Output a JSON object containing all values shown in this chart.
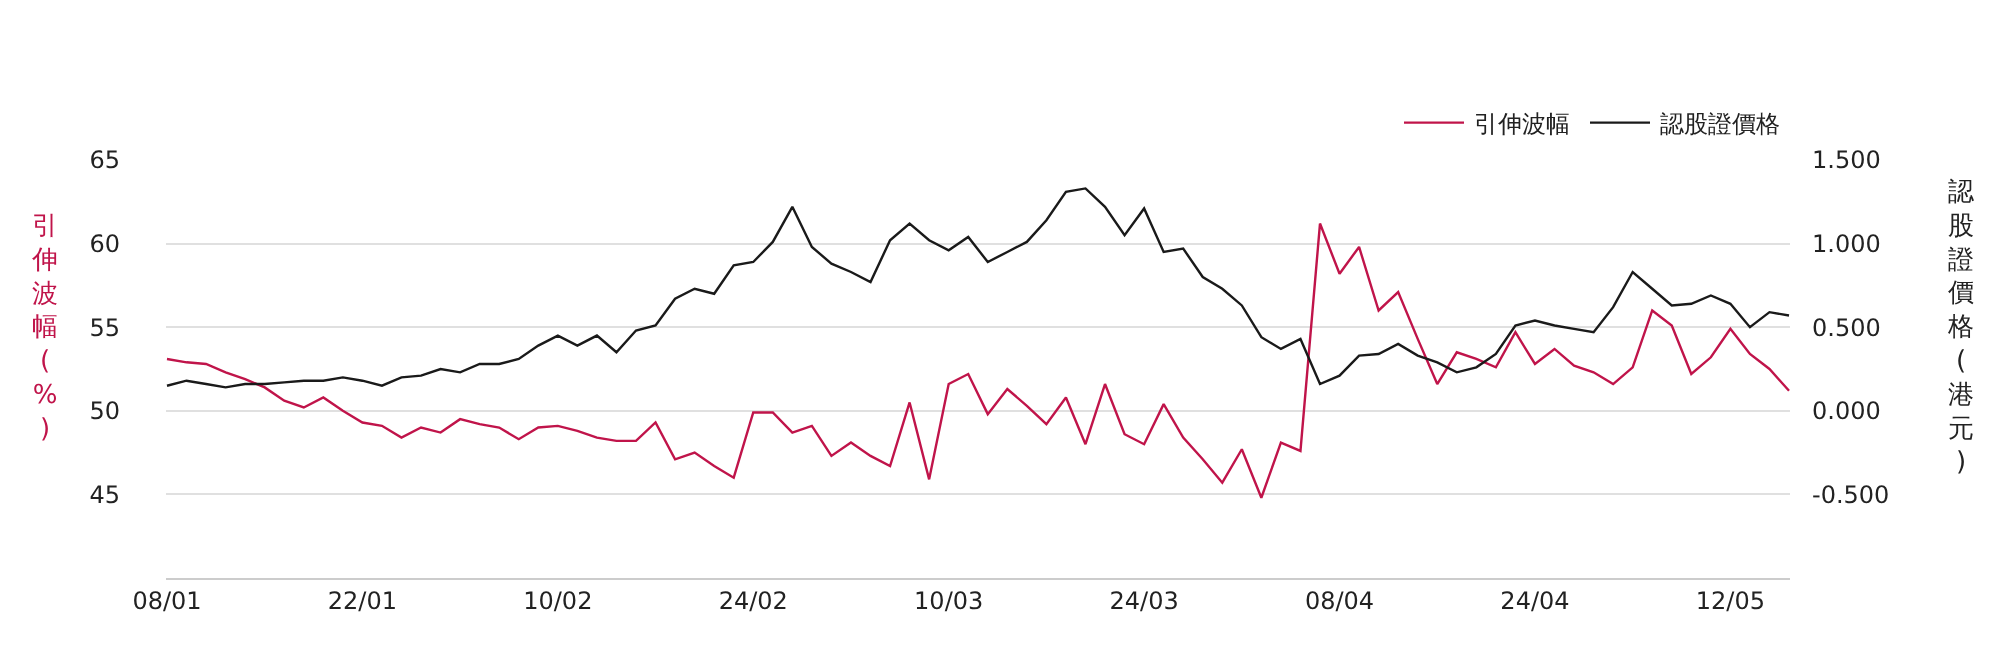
{
  "chart_data": {
    "type": "line",
    "categories": [
      "08/01",
      null,
      null,
      null,
      null,
      null,
      null,
      null,
      null,
      null,
      "22/01",
      null,
      null,
      null,
      null,
      null,
      null,
      null,
      null,
      null,
      "10/02",
      null,
      null,
      null,
      null,
      null,
      null,
      null,
      null,
      null,
      "24/02",
      null,
      null,
      null,
      null,
      null,
      null,
      null,
      null,
      null,
      "10/03",
      null,
      null,
      null,
      null,
      null,
      null,
      null,
      null,
      null,
      "24/03",
      null,
      null,
      null,
      null,
      null,
      null,
      null,
      null,
      null,
      "08/04",
      null,
      null,
      null,
      null,
      null,
      null,
      null,
      null,
      null,
      "24/04",
      null,
      null,
      null,
      null,
      null,
      null,
      null,
      null,
      null,
      "12/05",
      null,
      null,
      null
    ],
    "series": [
      {
        "name": "引伸波幅",
        "color": "#c0144a",
        "values": [
          53.1,
          52.9,
          52.8,
          52.3,
          51.9,
          51.4,
          50.6,
          50.2,
          50.8,
          50.0,
          49.3,
          49.1,
          48.4,
          49.0,
          48.7,
          49.5,
          49.2,
          49.0,
          48.3,
          49.0,
          49.1,
          48.8,
          48.4,
          48.2,
          48.2,
          49.3,
          47.1,
          47.5,
          46.7,
          46.0,
          49.9,
          49.9,
          48.7,
          49.1,
          47.3,
          48.1,
          47.3,
          46.7,
          50.5,
          45.9,
          51.6,
          52.2,
          49.8,
          51.3,
          50.3,
          49.2,
          50.8,
          48.0,
          51.6,
          48.6,
          48.0,
          50.4,
          48.4,
          47.1,
          45.7,
          47.7,
          44.8,
          48.1,
          47.6,
          61.2,
          58.2,
          59.8,
          56.0,
          57.1,
          54.3,
          51.6,
          53.5,
          53.1,
          52.6,
          54.7,
          52.8,
          53.7,
          52.7,
          52.3,
          51.6,
          52.6,
          56.0,
          55.1,
          52.2,
          53.2,
          54.9,
          53.4,
          52.5,
          51.2
        ]
      },
      {
        "name": "認股證價格",
        "color": "#1a1a1a",
        "axis": "y2",
        "values": [
          0.15,
          0.18,
          0.16,
          0.14,
          0.16,
          0.16,
          0.17,
          0.18,
          0.18,
          0.2,
          0.18,
          0.15,
          0.2,
          0.21,
          0.25,
          0.23,
          0.28,
          0.28,
          0.31,
          0.39,
          0.45,
          0.39,
          0.45,
          0.35,
          0.48,
          0.51,
          0.67,
          0.73,
          0.7,
          0.87,
          0.89,
          1.01,
          1.22,
          0.98,
          0.88,
          0.83,
          0.77,
          1.02,
          1.12,
          1.02,
          0.96,
          1.04,
          0.89,
          0.95,
          1.01,
          1.14,
          1.31,
          1.33,
          1.22,
          1.05,
          1.21,
          0.95,
          0.97,
          0.8,
          0.73,
          0.63,
          0.44,
          0.37,
          0.43,
          0.16,
          0.21,
          0.33,
          0.34,
          0.4,
          0.33,
          0.29,
          0.23,
          0.26,
          0.34,
          0.51,
          0.54,
          0.51,
          0.49,
          0.47,
          0.62,
          0.83,
          0.73,
          0.63,
          0.64,
          0.69,
          0.64,
          0.5,
          0.59,
          0.57
        ]
      }
    ],
    "ylabel": "引伸波幅(%)",
    "y2label": "認股證價格(港元)",
    "ylim": [
      40,
      65
    ],
    "yticks": [
      45,
      50,
      55,
      60,
      65
    ],
    "y2lim": [
      -1.0,
      1.5
    ],
    "y2ticks": [
      {
        "value": -0.5,
        "label": "-0.500"
      },
      {
        "value": 0,
        "label": "0.000"
      },
      {
        "value": 0.5,
        "label": "0.500"
      },
      {
        "value": 1.0,
        "label": "1.000"
      },
      {
        "value": 1.5,
        "label": "1.500"
      }
    ],
    "grid": "y",
    "legend": "top right",
    "marker": "none",
    "line_style": "solid"
  }
}
